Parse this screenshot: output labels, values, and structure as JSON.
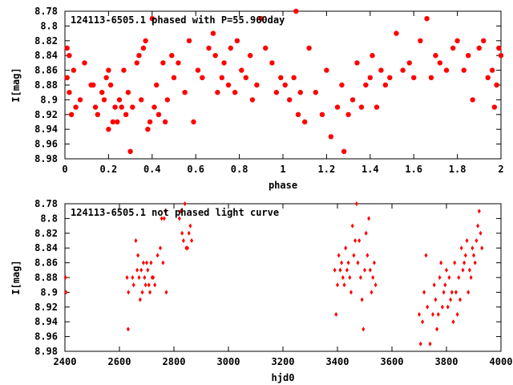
{
  "colors": {
    "points": "#ff0000",
    "axes": "#000000",
    "background": "#ffffff"
  },
  "chart_data": [
    {
      "type": "scatter",
      "title": "124113-6505.1 phased with P=55.960day",
      "xlabel": "phase",
      "ylabel": "I[mag]",
      "xlim": [
        0,
        2
      ],
      "ylim": [
        8.98,
        8.78
      ],
      "y_inverted": true,
      "marker": "filled-circle-large",
      "x_ticks": [
        "0",
        "0.2",
        "0.4",
        "0.6",
        "0.8",
        "1",
        "1.2",
        "1.4",
        "1.6",
        "1.8",
        "2"
      ],
      "y_ticks": [
        "8.78",
        "8.8",
        "8.82",
        "8.84",
        "8.86",
        "8.88",
        "8.9",
        "8.92",
        "8.94",
        "8.96",
        "8.98"
      ],
      "series": [
        {
          "x": [
            0.01,
            0.01,
            0.02,
            0.02,
            0.03,
            0.04,
            0.05,
            0.07,
            0.09,
            0.12,
            0.13,
            0.14,
            0.15,
            0.17,
            0.18,
            0.19,
            0.2,
            0.2,
            0.21,
            0.22,
            0.23,
            0.24,
            0.25,
            0.26,
            0.27,
            0.28,
            0.29,
            0.3,
            0.31,
            0.33,
            0.34,
            0.35,
            0.36,
            0.37,
            0.38,
            0.39,
            0.4,
            0.41,
            0.42,
            0.43,
            0.45,
            0.46,
            0.47,
            0.49,
            0.5,
            0.52,
            0.55,
            0.57,
            0.59,
            0.61,
            0.63,
            0.66,
            0.68,
            0.69,
            0.7,
            0.72,
            0.73,
            0.75,
            0.76,
            0.78,
            0.79,
            0.81,
            0.83,
            0.85,
            0.86,
            0.88,
            0.9,
            0.92,
            0.95,
            0.97,
            0.99,
            1.01,
            1.03,
            1.05,
            1.06,
            1.07,
            1.08,
            1.1,
            1.12,
            1.15,
            1.18,
            1.2,
            1.22,
            1.25,
            1.27,
            1.28,
            1.3,
            1.32,
            1.34,
            1.36,
            1.38,
            1.4,
            1.41,
            1.43,
            1.45,
            1.47,
            1.49,
            1.52,
            1.55,
            1.58,
            1.6,
            1.63,
            1.66,
            1.68,
            1.7,
            1.72,
            1.75,
            1.78,
            1.8,
            1.83,
            1.85,
            1.87,
            1.9,
            1.92,
            1.94,
            1.96,
            1.97,
            1.98,
            1.99,
            2.0
          ],
          "y": [
            8.83,
            8.87,
            8.84,
            8.89,
            8.92,
            8.86,
            8.91,
            8.9,
            8.85,
            8.88,
            8.88,
            8.91,
            8.92,
            8.89,
            8.9,
            8.87,
            8.94,
            8.86,
            8.88,
            8.93,
            8.91,
            8.93,
            8.9,
            8.91,
            8.86,
            8.92,
            8.89,
            8.97,
            8.91,
            8.85,
            8.84,
            8.9,
            8.83,
            8.82,
            8.94,
            8.93,
            8.79,
            8.91,
            8.88,
            8.92,
            8.85,
            8.93,
            8.9,
            8.84,
            8.87,
            8.85,
            8.89,
            8.82,
            8.93,
            8.86,
            8.87,
            8.83,
            8.81,
            8.84,
            8.89,
            8.87,
            8.85,
            8.88,
            8.83,
            8.89,
            8.82,
            8.86,
            8.87,
            8.84,
            8.9,
            8.88,
            8.79,
            8.83,
            8.85,
            8.89,
            8.87,
            8.88,
            8.9,
            8.87,
            8.78,
            8.92,
            8.89,
            8.93,
            8.83,
            8.89,
            8.92,
            8.86,
            8.95,
            8.91,
            8.88,
            8.97,
            8.92,
            8.9,
            8.85,
            8.91,
            8.88,
            8.87,
            8.84,
            8.91,
            8.86,
            8.88,
            8.87,
            8.81,
            8.86,
            8.85,
            8.87,
            8.82,
            8.79,
            8.87,
            8.84,
            8.85,
            8.86,
            8.83,
            8.82,
            8.86,
            8.84,
            8.9,
            8.83,
            8.82,
            8.87,
            8.86,
            8.91,
            8.88,
            8.83,
            8.84
          ]
        }
      ]
    },
    {
      "type": "scatter",
      "title": "124113-6505.1 not phased light curve",
      "xlabel": "hjd0",
      "ylabel": "I[mag]",
      "xlim": [
        2400,
        4000
      ],
      "ylim": [
        8.98,
        8.78
      ],
      "y_inverted": true,
      "marker": "small-diamond",
      "x_ticks": [
        "2400",
        "2600",
        "2800",
        "3000",
        "3200",
        "3400",
        "3600",
        "3800",
        "4000"
      ],
      "y_ticks": [
        "8.78",
        "8.8",
        "8.82",
        "8.84",
        "8.86",
        "8.88",
        "8.9",
        "8.92",
        "8.94",
        "8.96",
        "8.98"
      ],
      "series": [
        {
          "x": [
            2402,
            2404,
            2628,
            2632,
            2633,
            2648,
            2652,
            2660,
            2665,
            2668,
            2672,
            2676,
            2680,
            2684,
            2688,
            2692,
            2696,
            2700,
            2704,
            2708,
            2712,
            2716,
            2720,
            2724,
            2730,
            2740,
            2750,
            2755,
            2760,
            2764,
            2768,
            2772,
            2820,
            2825,
            2830,
            2835,
            2840,
            2845,
            2850,
            2855,
            2860,
            2865,
            3390,
            3395,
            3400,
            3405,
            3410,
            3415,
            3420,
            3425,
            3430,
            3435,
            3440,
            3445,
            3450,
            3455,
            3460,
            3465,
            3470,
            3475,
            3480,
            3485,
            3490,
            3495,
            3500,
            3505,
            3510,
            3515,
            3520,
            3525,
            3530,
            3535,
            3540,
            3700,
            3705,
            3712,
            3718,
            3725,
            3730,
            3740,
            3750,
            3755,
            3760,
            3765,
            3770,
            3775,
            3780,
            3785,
            3790,
            3795,
            3800,
            3805,
            3810,
            3815,
            3820,
            3825,
            3830,
            3835,
            3840,
            3845,
            3850,
            3855,
            3860,
            3865,
            3870,
            3875,
            3880,
            3885,
            3890,
            3895,
            3900,
            3905,
            3910,
            3915,
            3920,
            3925,
            3930
          ],
          "y": [
            8.88,
            8.9,
            8.88,
            8.95,
            8.9,
            8.88,
            8.89,
            8.83,
            8.87,
            8.85,
            8.88,
            8.91,
            8.87,
            8.9,
            8.86,
            8.88,
            8.89,
            8.86,
            8.87,
            8.89,
            8.9,
            8.86,
            8.88,
            8.88,
            8.89,
            8.85,
            8.84,
            8.8,
            8.86,
            8.8,
            8.79,
            8.9,
            8.8,
            8.79,
            8.82,
            8.83,
            8.78,
            8.84,
            8.84,
            8.82,
            8.81,
            8.83,
            8.87,
            8.93,
            8.89,
            8.85,
            8.87,
            8.86,
            8.88,
            8.89,
            8.84,
            8.87,
            8.86,
            8.88,
            8.9,
            8.81,
            8.85,
            8.83,
            8.78,
            8.86,
            8.83,
            8.88,
            8.91,
            8.95,
            8.87,
            8.82,
            8.85,
            8.8,
            8.87,
            8.9,
            8.88,
            8.86,
            8.89,
            8.93,
            8.97,
            8.94,
            8.9,
            8.85,
            8.92,
            8.97,
            8.93,
            8.89,
            8.91,
            8.95,
            8.93,
            8.88,
            8.86,
            8.92,
            8.9,
            8.89,
            8.87,
            8.92,
            8.88,
            8.91,
            8.9,
            8.94,
            8.86,
            8.9,
            8.93,
            8.88,
            8.91,
            8.84,
            8.87,
            8.86,
            8.85,
            8.83,
            8.9,
            8.87,
            8.88,
            8.84,
            8.85,
            8.86,
            8.83,
            8.81,
            8.79,
            8.82,
            8.84
          ]
        }
      ]
    }
  ]
}
